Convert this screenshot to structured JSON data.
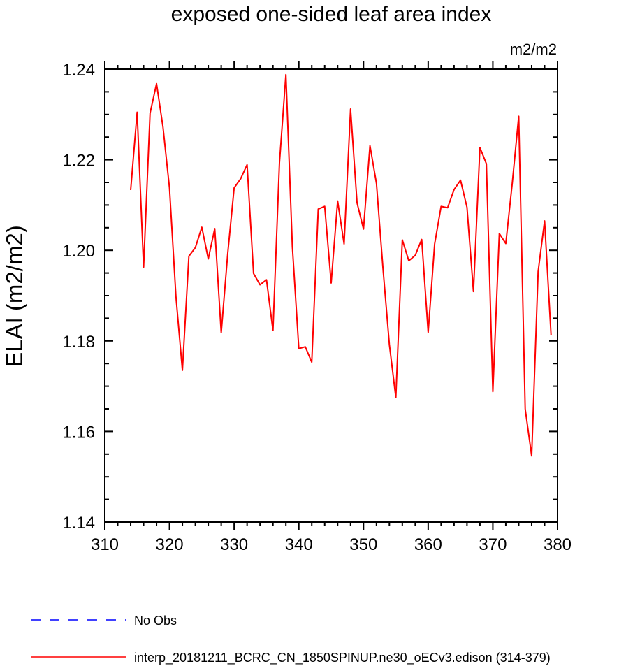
{
  "chart_data": {
    "type": "line",
    "title": "exposed one-sided leaf area index",
    "units_label": "m2/m2",
    "xlabel": "",
    "ylabel": "ELAI  (m2/m2)",
    "xlim": [
      310,
      380
    ],
    "ylim": [
      1.14,
      1.24
    ],
    "x_ticks": [
      "310",
      "320",
      "330",
      "340",
      "350",
      "360",
      "370",
      "380"
    ],
    "y_ticks": [
      "1.14",
      "1.16",
      "1.18",
      "1.20",
      "1.22",
      "1.24"
    ],
    "grid": false,
    "legend_position": "bottom",
    "series": [
      {
        "name": "No Obs",
        "color": "#0000ff",
        "dash": "dashed",
        "x": [],
        "y": []
      },
      {
        "name": "interp_20181211_BCRC_CN_1850SPINUP.ne30_oECv3.edison (314-379)",
        "color": "#ff0000",
        "dash": "solid",
        "x": [
          314,
          315,
          316,
          317,
          318,
          319,
          320,
          321,
          322,
          323,
          324,
          325,
          326,
          327,
          328,
          329,
          330,
          331,
          332,
          333,
          334,
          335,
          336,
          337,
          338,
          339,
          340,
          341,
          342,
          343,
          344,
          345,
          346,
          347,
          348,
          349,
          350,
          351,
          352,
          353,
          354,
          355,
          356,
          357,
          358,
          359,
          360,
          361,
          362,
          363,
          364,
          365,
          366,
          367,
          368,
          369,
          370,
          371,
          372,
          373,
          374,
          375,
          376,
          377,
          378,
          379
        ],
        "y": [
          1.2133,
          1.2305,
          1.1963,
          1.2303,
          1.2368,
          1.2272,
          1.2138,
          1.1898,
          1.1735,
          1.1987,
          1.2006,
          1.2051,
          1.1981,
          1.2048,
          1.1818,
          1.1992,
          1.2138,
          1.2158,
          1.2189,
          1.1949,
          1.1924,
          1.1935,
          1.1823,
          1.2192,
          1.2388,
          1.2008,
          1.1783,
          1.1787,
          1.1753,
          1.2091,
          1.2097,
          1.1928,
          1.2109,
          1.2014,
          1.2312,
          1.2105,
          1.2047,
          1.2231,
          1.2148,
          1.1962,
          1.1792,
          1.1675,
          1.2023,
          1.1977,
          1.1989,
          1.2024,
          1.1819,
          1.2014,
          1.2097,
          1.2094,
          1.2134,
          1.2155,
          1.2095,
          1.1909,
          1.2227,
          1.2191,
          1.1688,
          1.2037,
          1.2015,
          1.2148,
          1.2296,
          1.165,
          1.1546,
          1.1953,
          1.2065,
          1.1813
        ]
      }
    ]
  }
}
